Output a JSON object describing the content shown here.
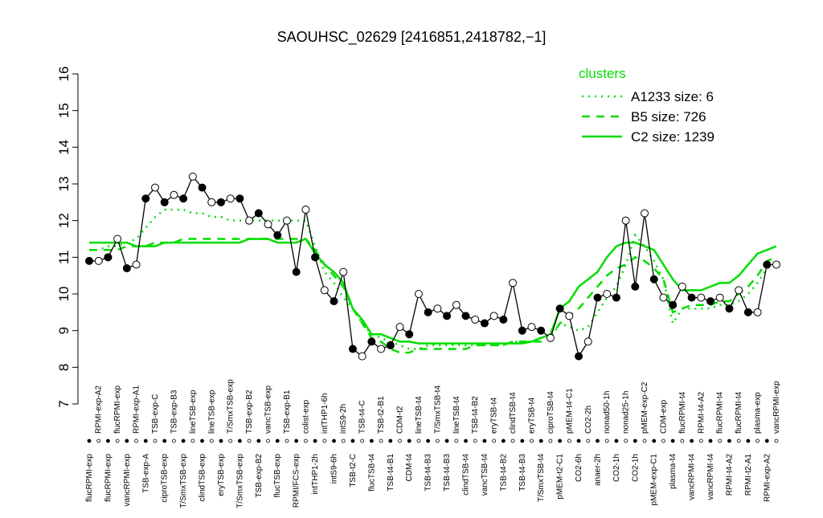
{
  "chart_data": {
    "type": "line",
    "title": "SAOUHSC_02629 [2416851,2418782,−1]",
    "categories": [
      "flucRPMI-exp",
      "RPMI-exp-A2",
      "flucRPMI-exp",
      "flucRPMI-exp",
      "vancRPMI-exp",
      "RPMI-exp-A1",
      "TSB-exp-A",
      "TSB-exp-C",
      "ciproTSB-exp",
      "TSB-exp-B3",
      "T/SmxTSB-exp",
      "lineTSB-exp",
      "clindTSB-exp",
      "lineTSB-exp",
      "eryTSB-exp",
      "T/SmxTSB-exp",
      "T/SmxTSB-exp",
      "TSB-exp-B2",
      "TSB-exp-B2",
      "vancTSB-exp",
      "flucTSB-exp",
      "TSB-exp-B1",
      "RPMI/FCS-exp",
      "colist-exp",
      "intTHP1-2h",
      "intTHP1-6h",
      "intS9-6h",
      "intS9-2h",
      "TSB-t2-C",
      "TSB-t4-C",
      "flucTSB-t4",
      "TSB-t2-B1",
      "TSB-t4-B1",
      "CDM-t2",
      "CDM-t4",
      "lineTSB-t4",
      "TSB-t4-B3",
      "T/SmxTSB-t4",
      "TSB-t4-B3",
      "lineTSB-t4",
      "clindTSB-t4",
      "TSB-t4-B2",
      "vancTSB-t4",
      "eryTSB-t4",
      "TSB-t4-B2",
      "clindTSB-t4",
      "TSB-t4-B3",
      "eryTSB-t4",
      "T/SmxTSB-t4",
      "ciproTSB-t4",
      "pMEM-t2-C1",
      "pMEM-t4-C1",
      "CO2-6h",
      "CO2-2h",
      "anaer-2h",
      "nonad50-1h",
      "CO2-1h",
      "nonad25-1h",
      "CO2-1h",
      "pMEM-exp-C2",
      "pMEM-exp-C1",
      "CDM-exp",
      "plasma-t4",
      "flucRPMI-t4",
      "vancRPMI-t4",
      "RPMI-t4-A2",
      "vancRPMI-t4",
      "flucRPMI-t4",
      "RPMI-t4-A2",
      "flucRPMI-t4",
      "RPMI-t2-A1",
      "plasma-exp",
      "RPMI-exp-A2",
      "vancRPMI-exp"
    ],
    "values": [
      10.9,
      10.9,
      11.0,
      11.5,
      10.7,
      10.8,
      12.6,
      12.9,
      12.5,
      12.7,
      12.6,
      13.2,
      12.9,
      12.5,
      12.5,
      12.6,
      12.6,
      12.0,
      12.2,
      11.9,
      11.6,
      12.0,
      10.6,
      12.3,
      11.0,
      10.1,
      9.8,
      10.6,
      8.5,
      8.3,
      8.7,
      8.5,
      8.6,
      9.1,
      8.9,
      10.0,
      9.5,
      9.6,
      9.4,
      9.7,
      9.4,
      9.3,
      9.2,
      9.4,
      9.3,
      10.3,
      9.0,
      9.1,
      9.0,
      8.8,
      9.6,
      9.4,
      8.3,
      8.7,
      9.9,
      10.0,
      9.9,
      12.0,
      10.2,
      12.2,
      10.4,
      9.9,
      9.7,
      10.2,
      9.9,
      9.9,
      9.8,
      9.9,
      9.6,
      10.1,
      9.5,
      9.5,
      10.8,
      10.8
    ],
    "line_color": "#000000",
    "legend_title": "clusters",
    "series": [
      {
        "name": "A1233 size: 6",
        "color": "#00dd00",
        "dash": "dotted",
        "values": [
          11.2,
          11.2,
          11.3,
          11.3,
          11.4,
          11.5,
          11.8,
          12.1,
          12.3,
          12.3,
          12.3,
          12.2,
          12.2,
          12.1,
          12.1,
          12.0,
          12.0,
          12.0,
          12.0,
          12.0,
          12.0,
          12.0,
          12.0,
          12.0,
          11.3,
          10.6,
          10.3,
          9.9,
          9.6,
          9.2,
          8.9,
          8.8,
          8.7,
          8.6,
          8.5,
          8.5,
          8.6,
          8.6,
          8.6,
          8.6,
          8.6,
          8.6,
          8.6,
          8.6,
          8.6,
          8.7,
          8.7,
          8.7,
          8.8,
          8.8,
          9.2,
          9.1,
          9.0,
          9.1,
          9.5,
          9.9,
          10.2,
          10.8,
          11.6,
          11.3,
          10.9,
          10.4,
          9.2,
          9.6,
          9.6,
          9.6,
          9.6,
          9.7,
          9.7,
          9.8,
          10.0,
          10.3,
          10.7,
          10.8
        ]
      },
      {
        "name": "B5 size: 726",
        "color": "#00dd00",
        "dash": "dashed",
        "values": [
          11.2,
          11.2,
          11.2,
          11.2,
          11.3,
          11.3,
          11.3,
          11.4,
          11.4,
          11.4,
          11.5,
          11.5,
          11.5,
          11.5,
          11.5,
          11.5,
          11.5,
          11.5,
          11.5,
          11.5,
          11.5,
          11.5,
          11.5,
          11.5,
          11.2,
          10.8,
          10.5,
          10.2,
          9.6,
          9.2,
          8.8,
          8.7,
          8.5,
          8.4,
          8.4,
          8.5,
          8.5,
          8.5,
          8.5,
          8.5,
          8.5,
          8.6,
          8.6,
          8.6,
          8.6,
          8.7,
          8.7,
          8.7,
          8.7,
          8.8,
          9.2,
          9.4,
          9.6,
          9.9,
          10.2,
          10.5,
          10.7,
          10.8,
          11.0,
          10.9,
          10.7,
          10.4,
          9.5,
          9.6,
          9.7,
          9.7,
          9.7,
          9.8,
          9.8,
          10.0,
          10.2,
          10.5,
          10.9,
          11.0
        ]
      },
      {
        "name": "C2 size: 1239",
        "color": "#00dd00",
        "dash": "solid",
        "values": [
          11.4,
          11.4,
          11.4,
          11.4,
          11.4,
          11.3,
          11.3,
          11.3,
          11.4,
          11.4,
          11.4,
          11.4,
          11.4,
          11.4,
          11.4,
          11.4,
          11.4,
          11.5,
          11.5,
          11.5,
          11.4,
          11.4,
          11.4,
          11.5,
          11.1,
          10.8,
          10.6,
          10.3,
          9.6,
          9.3,
          8.9,
          8.9,
          8.8,
          8.7,
          8.7,
          8.65,
          8.65,
          8.65,
          8.65,
          8.65,
          8.65,
          8.65,
          8.65,
          8.65,
          8.65,
          8.65,
          8.65,
          8.7,
          8.8,
          8.9,
          9.6,
          9.8,
          10.2,
          10.4,
          10.6,
          11.0,
          11.3,
          11.4,
          11.4,
          11.3,
          11.2,
          10.8,
          10.4,
          10.1,
          10.1,
          10.1,
          10.2,
          10.3,
          10.3,
          10.5,
          10.8,
          11.1,
          11.2,
          11.3
        ]
      }
    ],
    "ylim": [
      7,
      16
    ],
    "yticks": [
      7,
      8,
      9,
      10,
      11,
      12,
      13,
      14,
      15,
      16
    ]
  }
}
